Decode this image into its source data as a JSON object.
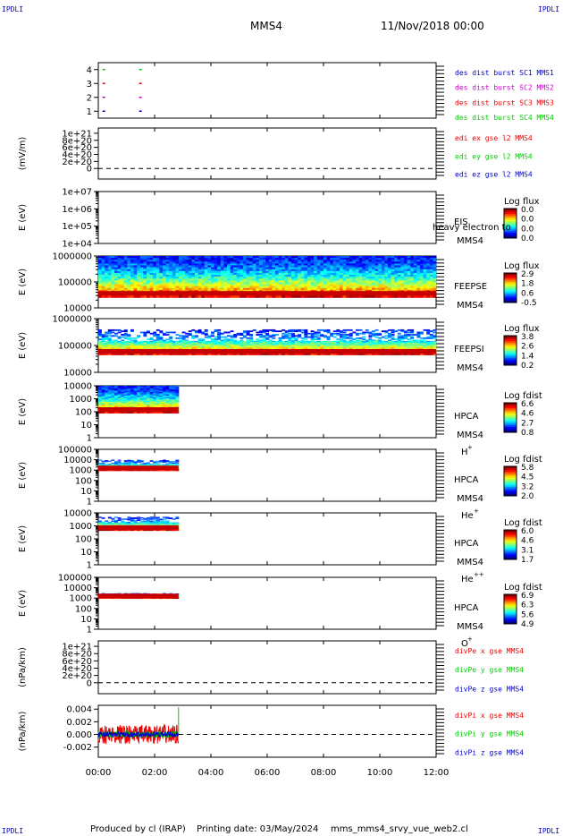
{
  "header": {
    "corner_labels": [
      "IPDLI",
      "IPDLI",
      "IPDLI",
      "IPDLI"
    ],
    "mission": "MMS4",
    "date": "11/Nov/2018 00:00"
  },
  "footer": {
    "produced_by": "Produced by cl (IRAP)",
    "printing_date": "Printing date: 03/May/2024",
    "filename": "mms_mms4_srvy_vue_web2.cl"
  },
  "time_axis": {
    "range_hours": [
      0,
      12
    ],
    "tick_hours": [
      0,
      2,
      4,
      6,
      8,
      10,
      12
    ],
    "tick_labels": [
      "00:00",
      "02:00",
      "04:00",
      "06:00",
      "08:00",
      "10:00",
      "12:00"
    ]
  },
  "colors": {
    "blue": "#0000cc",
    "magenta": "#cc00cc",
    "red": "#ee0000",
    "green": "#00cc00",
    "corner": "#0000aa"
  },
  "chart_data": [
    {
      "id": "burst",
      "type": "scatter",
      "ylabel": "",
      "ylim": [
        0.5,
        4.5
      ],
      "yticks": [
        1,
        2,
        3,
        4
      ],
      "yticklabels": [
        "1",
        "2",
        "3",
        "4"
      ],
      "legend": [
        {
          "text": "des dist burst SC1 MMS1",
          "color": "#0000cc"
        },
        {
          "text": "des dist burst SC2 MMS2",
          "color": "#cc00cc"
        },
        {
          "text": "des dist burst SC3 MMS3",
          "color": "#ee0000"
        },
        {
          "text": "des dist burst SC4 MMS4",
          "color": "#00cc00"
        }
      ],
      "series": [
        {
          "name": "des dist burst SC1 MMS1",
          "y": 1,
          "x": [
            0.15,
            1.45
          ]
        },
        {
          "name": "des dist burst SC2 MMS2",
          "y": 2,
          "x": [
            0.15,
            1.45
          ]
        },
        {
          "name": "des dist burst SC3 MMS3",
          "y": 3,
          "x": [
            0.15,
            1.45
          ]
        },
        {
          "name": "des dist burst SC4 MMS4",
          "y": 4,
          "x": [
            0.15,
            1.45
          ]
        }
      ]
    },
    {
      "id": "edi",
      "type": "line",
      "ylabel": "(mV/m)",
      "ylim": [
        -3e+20,
        1.15e+21
      ],
      "yticks": [
        0,
        2e+20,
        4e+20,
        6e+20,
        8e+20,
        1e+21
      ],
      "yticklabels": [
        "0",
        "2e+20",
        "4e+20",
        "6e+20",
        "8e+20",
        "1e+21"
      ],
      "zero_line": true,
      "legend": [
        {
          "text": "edi ex gse l2 MMS4",
          "color": "#ee0000"
        },
        {
          "text": "edi ey gse l2 MMS4",
          "color": "#00cc00"
        },
        {
          "text": "edi ez gse l2 MMS4",
          "color": "#0000cc"
        }
      ]
    },
    {
      "id": "eis",
      "type": "heatmap",
      "ylabel": "E (eV)",
      "log": true,
      "ylim": [
        10000.0,
        10000000.0
      ],
      "yticks": [
        10000.0,
        100000.0,
        1000000.0,
        10000000.0
      ],
      "yticklabels": [
        "1e+04",
        "1e+05",
        "1e+06",
        "1e+07"
      ],
      "instrument": "EIS",
      "spacecraft": "MMS4",
      "overlay_text": "heavy electron to",
      "colorbar": {
        "title": "Log flux",
        "ticks": [
          "0.0",
          "0.0",
          "0.0",
          "0.0"
        ]
      }
    },
    {
      "id": "feepse",
      "type": "heatmap",
      "ylabel": "E (eV)",
      "log": true,
      "ylim": [
        10000.0,
        1000000.0
      ],
      "yticks": [
        10000.0,
        100000.0,
        1000000.0
      ],
      "yticklabels": [
        "10000",
        "100000",
        "1000000"
      ],
      "instrument": "FEEPSE",
      "spacecraft": "MMS4",
      "colorbar": {
        "title": "Log flux",
        "ticks": [
          "2.9",
          "1.8",
          "0.6",
          "-0.5"
        ]
      },
      "coverage_hours": [
        0,
        12
      ],
      "energy_range": [
        30000.0,
        1000000.0
      ]
    },
    {
      "id": "feepsi",
      "type": "heatmap",
      "ylabel": "E (eV)",
      "log": true,
      "ylim": [
        10000.0,
        1000000.0
      ],
      "yticks": [
        10000.0,
        100000.0,
        1000000.0
      ],
      "yticklabels": [
        "10000",
        "100000",
        "1000000"
      ],
      "instrument": "FEEPSI",
      "spacecraft": "MMS4",
      "colorbar": {
        "title": "Log flux",
        "ticks": [
          "3.8",
          "2.6",
          "1.4",
          "0.2"
        ]
      },
      "coverage_hours": [
        0,
        12
      ],
      "energy_range": [
        50000.0,
        400000.0
      ]
    },
    {
      "id": "hpca_h",
      "type": "heatmap",
      "ylabel": "E (eV)",
      "log": true,
      "ylim": [
        1,
        10000.0
      ],
      "yticks": [
        1,
        10,
        100,
        1000,
        10000
      ],
      "yticklabels": [
        "1",
        "10",
        "100",
        "1000",
        "10000"
      ],
      "instrument": "HPCA",
      "spacecraft": "MMS4",
      "species": "H",
      "charge": "+",
      "colorbar": {
        "title": "Log fdist",
        "ticks": [
          "6.6",
          "4.6",
          "2.7",
          "0.8"
        ]
      },
      "coverage_hours": [
        0,
        2.85
      ],
      "energy_range": [
        100,
        10000
      ]
    },
    {
      "id": "hpca_he1",
      "type": "heatmap",
      "ylabel": "E (eV)",
      "log": true,
      "ylim": [
        1,
        100000.0
      ],
      "yticks": [
        1,
        10,
        100,
        1000,
        10000,
        100000
      ],
      "yticklabels": [
        "1",
        "10",
        "100",
        "1000",
        "10000",
        "100000"
      ],
      "instrument": "HPCA",
      "spacecraft": "MMS4",
      "species": "He",
      "charge": "+",
      "colorbar": {
        "title": "Log fdist",
        "ticks": [
          "5.8",
          "4.5",
          "3.2",
          "2.0"
        ]
      },
      "coverage_hours": [
        0,
        2.85
      ],
      "energy_range": [
        1000,
        10000
      ]
    },
    {
      "id": "hpca_he2",
      "type": "heatmap",
      "ylabel": "E (eV)",
      "log": true,
      "ylim": [
        1,
        10000.0
      ],
      "yticks": [
        1,
        10,
        100,
        1000,
        10000
      ],
      "yticklabels": [
        "1",
        "10",
        "100",
        "1000",
        "10000"
      ],
      "instrument": "HPCA",
      "spacecraft": "MMS4",
      "species": "He",
      "charge": "++",
      "colorbar": {
        "title": "Log fdist",
        "ticks": [
          "6.0",
          "4.6",
          "3.1",
          "1.7"
        ]
      },
      "coverage_hours": [
        0,
        2.85
      ],
      "energy_range": [
        500,
        5000
      ]
    },
    {
      "id": "hpca_o",
      "type": "heatmap",
      "ylabel": "E (eV)",
      "log": true,
      "ylim": [
        1,
        100000.0
      ],
      "yticks": [
        1,
        10,
        100,
        1000,
        10000,
        100000
      ],
      "yticklabels": [
        "1",
        "10",
        "100",
        "1000",
        "10000",
        "100000"
      ],
      "instrument": "HPCA",
      "spacecraft": "MMS4",
      "species": "O",
      "charge": "+",
      "colorbar": {
        "title": "Log fdist",
        "ticks": [
          "6.9",
          "6.3",
          "5.6",
          "4.9"
        ]
      },
      "coverage_hours": [
        0,
        2.85
      ],
      "energy_range": [
        1000,
        3000
      ]
    },
    {
      "id": "divpe",
      "type": "line",
      "ylabel": "(nPa/km)",
      "ylim": [
        -3e+20,
        1.15e+21
      ],
      "yticks": [
        0,
        2e+20,
        4e+20,
        6e+20,
        8e+20,
        1e+21
      ],
      "yticklabels": [
        "0",
        "2e+20",
        "4e+20",
        "6e+20",
        "8e+20",
        "1e+21"
      ],
      "zero_line": true,
      "legend": [
        {
          "text": "divPe x gse MMS4",
          "color": "#ee0000"
        },
        {
          "text": "divPe y gse MMS4",
          "color": "#00cc00"
        },
        {
          "text": "divPe z gse MMS4",
          "color": "#0000cc"
        }
      ]
    },
    {
      "id": "divpi",
      "type": "line",
      "ylabel": "(nPa/km)",
      "ylim": [
        -0.0036,
        0.0046
      ],
      "yticks": [
        -0.002,
        0,
        0.002,
        0.004
      ],
      "yticklabels": [
        "-0.002",
        "0.000",
        "0.002",
        "0.004"
      ],
      "zero_line": true,
      "legend": [
        {
          "text": "divPi x gse MMS4",
          "color": "#ee0000"
        },
        {
          "text": "divPi y gse MMS4",
          "color": "#00cc00"
        },
        {
          "text": "divPi z gse MMS4",
          "color": "#0000cc"
        }
      ],
      "coverage_hours": [
        0,
        2.85
      ],
      "series": [
        {
          "name": "divPi x gse MMS4",
          "typical_range": [
            -0.0015,
            0.0015
          ]
        },
        {
          "name": "divPi y gse MMS4",
          "typical_range": [
            -0.0005,
            0.0005
          ],
          "spike_end": 0.0043
        },
        {
          "name": "divPi z gse MMS4",
          "typical_range": [
            -0.0004,
            0.0004
          ]
        }
      ]
    }
  ]
}
